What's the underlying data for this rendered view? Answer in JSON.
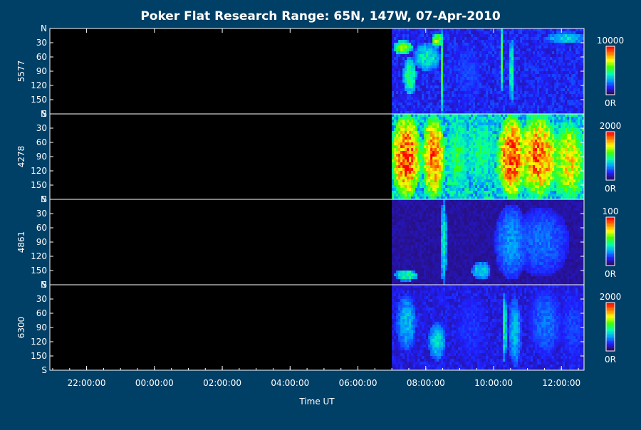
{
  "figure": {
    "title": "Poker Flat Research Range: 65N, 147W, 07-Apr-2010",
    "xlabel": "Time UT",
    "background": "#003f66",
    "frame_color": "#ffffff",
    "colormap": [
      "#2b0a5a",
      "#2020ff",
      "#00a0ff",
      "#00ffb0",
      "#40ff00",
      "#ffff00",
      "#ff8000",
      "#ff0000"
    ]
  },
  "chart_data": {
    "type": "heatmap",
    "title": "Poker Flat Research Range: 65N, 147W, 07-Apr-2010",
    "xlabel": "Time UT",
    "x_tick_labels": [
      "22:00:00",
      "00:00:00",
      "02:00:00",
      "04:00:00",
      "06:00:00",
      "08:00:00",
      "10:00:00",
      "12:00:00"
    ],
    "x_range": [
      "20:55:00",
      "12:40:00"
    ],
    "data_start": "07:00:00",
    "y_tick_labels": [
      "N",
      "30",
      "60",
      "90",
      "120",
      "150",
      "S"
    ],
    "y_range": [
      0,
      180
    ],
    "panels": [
      {
        "name": "5577",
        "colorbar": {
          "max_label": "10000",
          "min_label": "0R",
          "max": 10000,
          "min": 0
        },
        "events": [
          {
            "time": 7.3,
            "angle": 40,
            "width": 0.3,
            "height": 30,
            "level": 0.65
          },
          {
            "time": 7.5,
            "angle": 100,
            "width": 0.2,
            "height": 80,
            "level": 0.55
          },
          {
            "time": 8.0,
            "angle": 60,
            "width": 0.4,
            "height": 60,
            "level": 0.45
          },
          {
            "time": 8.3,
            "angle": 25,
            "width": 0.15,
            "height": 30,
            "level": 0.7
          },
          {
            "time": 8.45,
            "angle": 90,
            "width": 0.06,
            "height": 180,
            "level": 0.55
          },
          {
            "time": 9.2,
            "angle": 90,
            "width": 0.5,
            "height": 120,
            "level": 0.2
          },
          {
            "time": 10.2,
            "angle": 60,
            "width": 0.05,
            "height": 150,
            "level": 0.6
          },
          {
            "time": 10.5,
            "angle": 90,
            "width": 0.05,
            "height": 160,
            "level": 0.55
          },
          {
            "time": 12.1,
            "angle": 20,
            "width": 0.6,
            "height": 25,
            "level": 0.4
          }
        ],
        "background_level": 0.14
      },
      {
        "name": "4278",
        "colorbar": {
          "max_label": "2000",
          "min_label": "0R",
          "max": 2000,
          "min": 0
        },
        "events": [
          {
            "time": 7.4,
            "angle": 90,
            "width": 0.45,
            "height": 180,
            "level": 1.0
          },
          {
            "time": 8.2,
            "angle": 90,
            "width": 0.35,
            "height": 180,
            "level": 0.95
          },
          {
            "time": 8.9,
            "angle": 90,
            "width": 0.35,
            "height": 180,
            "level": 0.55
          },
          {
            "time": 9.6,
            "angle": 80,
            "width": 0.5,
            "height": 150,
            "level": 0.5
          },
          {
            "time": 10.5,
            "angle": 90,
            "width": 0.45,
            "height": 180,
            "level": 1.0
          },
          {
            "time": 11.3,
            "angle": 90,
            "width": 0.6,
            "height": 180,
            "level": 0.95
          },
          {
            "time": 12.2,
            "angle": 100,
            "width": 0.5,
            "height": 170,
            "level": 0.8
          }
        ],
        "background_level": 0.35
      },
      {
        "name": "4861",
        "colorbar": {
          "max_label": "100",
          "min_label": "0R",
          "max": 100,
          "min": 0
        },
        "events": [
          {
            "time": 7.4,
            "angle": 160,
            "width": 0.35,
            "height": 25,
            "level": 0.5
          },
          {
            "time": 8.5,
            "angle": 90,
            "width": 0.1,
            "height": 180,
            "level": 0.45
          },
          {
            "time": 9.6,
            "angle": 150,
            "width": 0.3,
            "height": 40,
            "level": 0.4
          },
          {
            "time": 10.5,
            "angle": 90,
            "width": 0.5,
            "height": 160,
            "level": 0.3
          },
          {
            "time": 11.4,
            "angle": 90,
            "width": 0.8,
            "height": 150,
            "level": 0.25
          }
        ],
        "background_level": 0.06
      },
      {
        "name": "6300",
        "colorbar": {
          "max_label": "2000",
          "min_label": "0R",
          "max": 2000,
          "min": 0
        },
        "events": [
          {
            "time": 7.4,
            "angle": 80,
            "width": 0.3,
            "height": 120,
            "level": 0.35
          },
          {
            "time": 8.3,
            "angle": 120,
            "width": 0.25,
            "height": 80,
            "level": 0.4
          },
          {
            "time": 9.3,
            "angle": 90,
            "width": 0.5,
            "height": 160,
            "level": 0.18
          },
          {
            "time": 10.3,
            "angle": 90,
            "width": 0.05,
            "height": 170,
            "level": 0.5
          },
          {
            "time": 10.6,
            "angle": 100,
            "width": 0.2,
            "height": 150,
            "level": 0.35
          },
          {
            "time": 11.5,
            "angle": 80,
            "width": 0.5,
            "height": 150,
            "level": 0.25
          },
          {
            "time": 12.3,
            "angle": 90,
            "width": 0.4,
            "height": 160,
            "level": 0.2
          }
        ],
        "background_level": 0.12
      }
    ]
  }
}
